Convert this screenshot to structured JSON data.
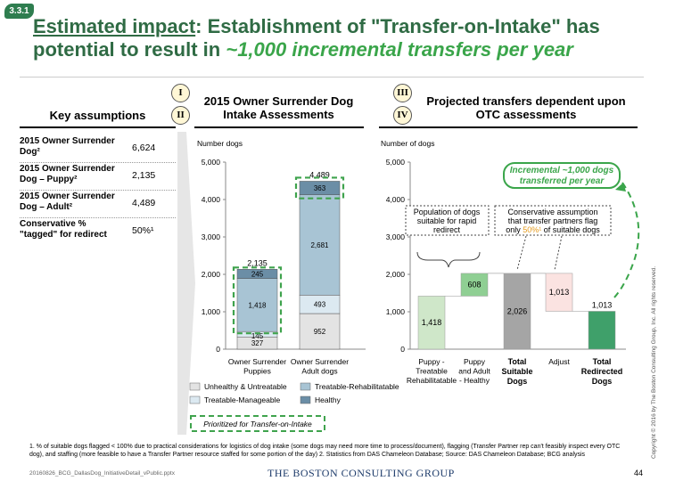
{
  "badge": "3.3.1",
  "title": {
    "part1": "Estimated impact",
    "part2": ": Establishment of \"Transfer-on-Intake\" has potential to result in ",
    "highlight": "~1,000 incremental transfers per year"
  },
  "sections": {
    "key_assumptions": "Key assumptions",
    "intake": "2015 Owner Surrender Dog Intake Assessments",
    "projected": "Projected transfers dependent upon OTC assessments"
  },
  "roman": [
    "I",
    "II",
    "III",
    "IV"
  ],
  "key_assumptions": [
    {
      "label": "2015 Owner Surrender Dog²",
      "value": "6,624"
    },
    {
      "label": "2015 Owner Surrender Dog – Puppy²",
      "value": "2,135"
    },
    {
      "label": "2015 Owner Surrender Dog – Adult²",
      "value": "4,489"
    },
    {
      "label": "Conservative % \"tagged\" for redirect",
      "value": "50%¹"
    }
  ],
  "chart_data": [
    {
      "type": "bar",
      "stacked": true,
      "ylabel": "Number dogs",
      "ylim": [
        0,
        5000
      ],
      "yticks": [
        "0",
        "1,000",
        "2,000",
        "3,000",
        "4,000",
        "5,000"
      ],
      "categories": [
        "Owner Surrender Puppies",
        "Owner Surrender Adult dogs"
      ],
      "totals": [
        "2,135",
        "4,489"
      ],
      "series": [
        {
          "name": "Unhealthy & Untreatable",
          "color": "#e3e3e3",
          "values": [
            327,
            952
          ]
        },
        {
          "name": "Treatable-Manageable",
          "color": "#dce9f1",
          "values": [
            145,
            493
          ]
        },
        {
          "name": "Treatable-Rehabilitatable",
          "color": "#a8c4d4",
          "values": [
            1418,
            2681
          ]
        },
        {
          "name": "Healthy",
          "color": "#6b8ea6",
          "values": [
            245,
            363
          ]
        }
      ],
      "legend_note": "Prioritized for Transfer-on-Intake"
    },
    {
      "type": "bar",
      "subtype": "waterfall",
      "ylabel": "Number of dogs",
      "ylim": [
        0,
        5000
      ],
      "yticks": [
        "0",
        "1,000",
        "2,000",
        "3,000",
        "4,000",
        "5,000"
      ],
      "categories": [
        "Puppy - Treatable Rehabilitatable",
        "Puppy and Adult - Healthy",
        "Total Suitable Dogs",
        "Adjust",
        "Total Redirected Dogs"
      ],
      "bars": [
        {
          "label": "Puppy -\nTreatable\nRehabilitatable",
          "value": 1418,
          "base": 0,
          "text": "1,418",
          "color": "#cfe7c9",
          "bold": false
        },
        {
          "label": "Puppy\nand Adult\n- Healthy",
          "value": 608,
          "base": 1418,
          "text": "608",
          "color": "#8fcf93",
          "bold": false
        },
        {
          "label": "Total\nSuitable\nDogs",
          "value": 2026,
          "base": 0,
          "text": "2,026",
          "color": "#a5a5a5",
          "bold": true
        },
        {
          "label": "Adjust",
          "value": 1013,
          "base": 1013,
          "text": "1,013",
          "color": "#fbe3e1",
          "bold": false
        },
        {
          "label": "Total\nRedirected\nDogs",
          "value": 1013,
          "base": 0,
          "text": "1,013",
          "color": "#3fa06a",
          "bold": true
        }
      ],
      "annotations": {
        "population": "Population of dogs suitable for rapid redirect",
        "conservative_1": "Conservative assumption",
        "conservative_2": "that transfer partners flag",
        "conservative_3a": "only ",
        "conservative_pct": "50%¹",
        "conservative_3b": " of suitable dogs",
        "callout": "Incremental ~1,000 dogs transferred per year"
      }
    }
  ],
  "footnote": "1. % of suitable dogs flagged < 100% due to practical considerations for logistics of dog intake (some dogs may need more time to process/document), flagging (Transfer Partner rep can't feasibly inspect every OTC dog), and staffing (more feasible to have a Transfer Partner resource staffed for some portion of the day)   2. Statistics from DAS Chameleon Database; Source: DAS Chameleon Database; BCG analysis",
  "file_name": "20160826_BCG_DallasDog_InitiativeDetail_vPublic.pptx",
  "brand": "THE BOSTON CONSULTING GROUP",
  "page_number": "44",
  "copyright": "Copyright © 2016 by The Boston Consulting Group, Inc. All rights reserved.",
  "colors": {
    "title": "#2f6b44",
    "accent_green": "#3aa54a",
    "badge": "#2e7d4f"
  }
}
